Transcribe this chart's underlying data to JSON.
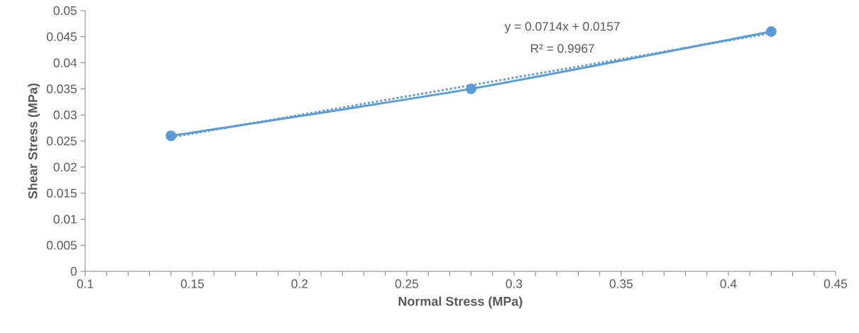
{
  "chart_data": {
    "type": "line",
    "xlabel": "Normal Stress (MPa)",
    "ylabel": "Shear Stress (MPa)",
    "x": [
      0.14,
      0.28,
      0.42
    ],
    "series": [
      {
        "color": "#5b9bd5",
        "values": [
          0.026,
          0.035,
          0.046
        ],
        "marker": "circle",
        "line_style": "solid"
      },
      {
        "type": "line",
        "color": "#5b9bd5",
        "x": [
          0.14,
          0.42
        ],
        "values": [
          0.0257,
          0.0457
        ],
        "marker": "none",
        "line_style": "dotted"
      }
    ],
    "annotations": [
      "y = 0.0714x + 0.0157",
      "R² = 0.9967"
    ],
    "xlim": [
      0.1,
      0.45
    ],
    "xticks": [
      0.1,
      0.15,
      0.2,
      0.25,
      0.3,
      0.35,
      0.4,
      0.45
    ],
    "ylim": [
      0,
      0.05
    ],
    "yticks": [
      0,
      0.005,
      0.01,
      0.015,
      0.02,
      0.025,
      0.03,
      0.035,
      0.04,
      0.045,
      0.05
    ],
    "grid": false
  }
}
